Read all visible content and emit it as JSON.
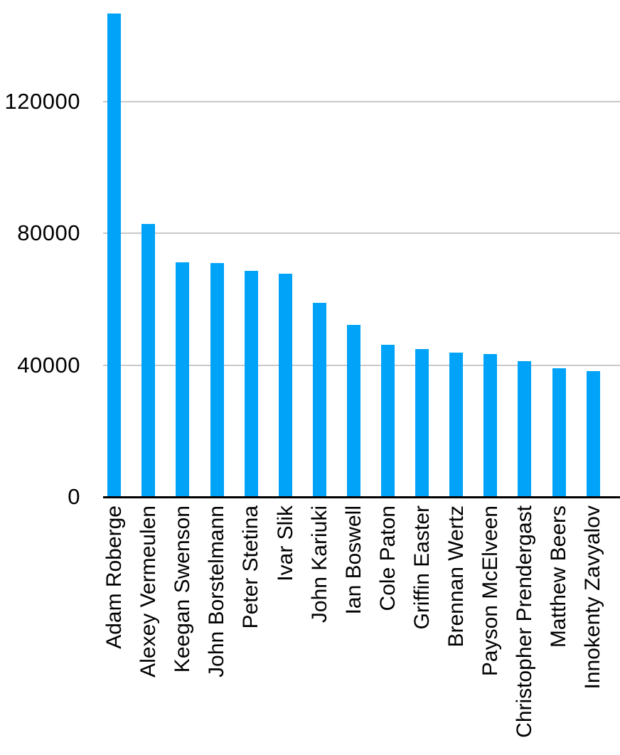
{
  "chart_data": {
    "type": "bar",
    "categories": [
      "Adam Roberge",
      "Alexey Vermeulen",
      "Keegan Swenson",
      "John Borstelmann",
      "Peter Stetina",
      "Ivar Slik",
      "John Kariuki",
      "Ian Boswell",
      "Cole Paton",
      "Griffin Easter",
      "Brennan Wertz",
      "Payson McElveen",
      "Christopher Prendergast",
      "Matthew Beers",
      "Innokenty Zavyalov"
    ],
    "values": [
      146700,
      83000,
      71300,
      71100,
      68700,
      67800,
      59000,
      52300,
      46300,
      44800,
      43900,
      43400,
      41300,
      39100,
      38300
    ],
    "xlabel": "",
    "ylabel": "",
    "ylim": [
      0,
      150900
    ],
    "yticks": [
      0,
      40000,
      80000,
      120000
    ],
    "ytick_labels": [
      "0",
      "40000",
      "80000",
      "120000"
    ],
    "grid": "horizontal",
    "legend": "none",
    "colors": {
      "bar": "#00A3F7",
      "gridline": "#C9C9C9",
      "axis_line": "#000000",
      "text": "#000000",
      "background": "#FFFFFF"
    }
  }
}
